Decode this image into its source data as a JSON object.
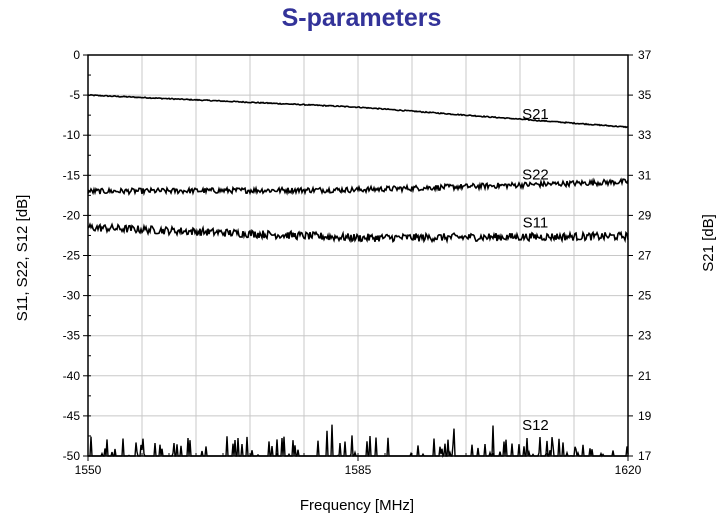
{
  "title": "S-parameters",
  "chart_data": {
    "type": "line",
    "title": "S-parameters",
    "xlabel": "Frequency [MHz]",
    "ylabel_left": "S11, S22, S12 [dB]",
    "ylabel_right": "S21 [dB]",
    "xlim": [
      1550,
      1620
    ],
    "ylim_left": [
      -50,
      0
    ],
    "ylim_right": [
      17,
      37
    ],
    "x_ticks": [
      1550,
      1585,
      1620
    ],
    "y_ticks_left": [
      0,
      -5,
      -10,
      -15,
      -20,
      -25,
      -30,
      -35,
      -40,
      -45,
      -50
    ],
    "y_ticks_right": [
      37,
      35,
      33,
      31,
      29,
      27,
      25,
      23,
      21,
      19,
      17
    ],
    "grid": true,
    "series": [
      {
        "name": "S21",
        "axis": "right",
        "x": [
          1550,
          1585,
          1620
        ],
        "values": [
          35.0,
          34.4,
          33.4
        ],
        "noise": 0.05
      },
      {
        "name": "S22",
        "axis": "left",
        "x": [
          1550,
          1585,
          1620
        ],
        "values": [
          -17.0,
          -16.8,
          -15.8
        ],
        "noise": 0.7
      },
      {
        "name": "S11",
        "axis": "left",
        "x": [
          1550,
          1585,
          1620
        ],
        "values": [
          -21.5,
          -22.8,
          -22.6
        ],
        "noise": 1.0
      },
      {
        "name": "S12",
        "axis": "left",
        "x": [
          1550,
          1620
        ],
        "values": [
          -50.0,
          -50.0
        ],
        "spikes": true
      }
    ],
    "series_labels": [
      {
        "text": "S21",
        "x": 1608,
        "y_right": 33.8
      },
      {
        "text": "S22",
        "x": 1608,
        "y_right": 30.8
      },
      {
        "text": "S11",
        "x": 1608,
        "y_right": 28.4
      },
      {
        "text": "S12",
        "x": 1608,
        "y_right": 18.3
      }
    ]
  }
}
